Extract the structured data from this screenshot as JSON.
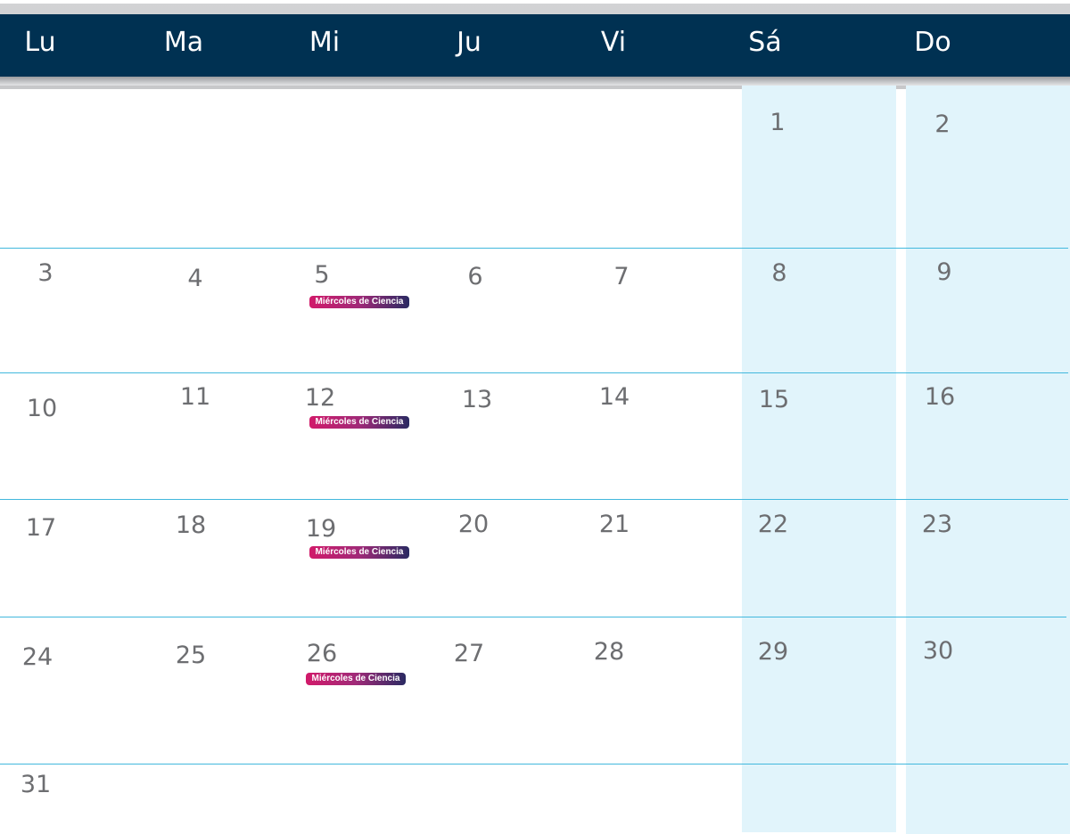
{
  "colors": {
    "header_bg": "#003152",
    "header_text": "#ffffff",
    "weekend_bg": "#e1f4fb",
    "grid_line": "#42b8dd",
    "day_number": "#6d6e71",
    "event_gradient": [
      "#d11a6a",
      "#2a2a62"
    ]
  },
  "weekdays": [
    "Lu",
    "Ma",
    "Mi",
    "Ju",
    "Vi",
    "Sá",
    "Do"
  ],
  "days": {
    "d1": "1",
    "d2": "2",
    "d3": "3",
    "d4": "4",
    "d5": "5",
    "d6": "6",
    "d7": "7",
    "d8": "8",
    "d9": "9",
    "d10": "10",
    "d11": "11",
    "d12": "12",
    "d13": "13",
    "d14": "14",
    "d15": "15",
    "d16": "16",
    "d17": "17",
    "d18": "18",
    "d19": "19",
    "d20": "20",
    "d21": "21",
    "d22": "22",
    "d23": "23",
    "d24": "24",
    "d25": "25",
    "d26": "26",
    "d27": "27",
    "d28": "28",
    "d29": "29",
    "d30": "30",
    "d31": "31"
  },
  "events": {
    "d5": "Miércoles de Ciencia",
    "d12": "Miércoles de Ciencia",
    "d19": "Miércoles de Ciencia",
    "d26": "Miércoles de Ciencia"
  }
}
